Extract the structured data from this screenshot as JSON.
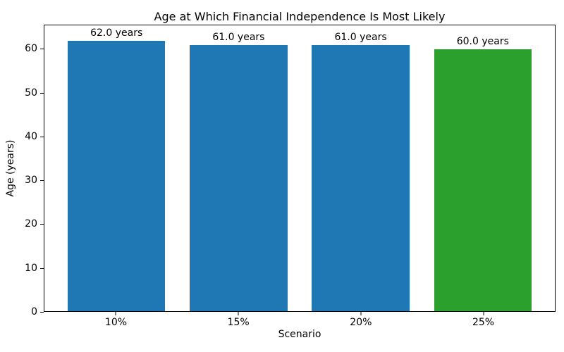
{
  "figure": {
    "background_color": "#ffffff",
    "text_color": "#000000"
  },
  "chart_data": {
    "type": "bar",
    "title": "Age at Which Financial Independence Is Most Likely",
    "xlabel": "Scenario",
    "ylabel": "Age (years)",
    "categories": [
      "10%",
      "15%",
      "20%",
      "25%"
    ],
    "values": [
      62.0,
      61.0,
      61.0,
      60.0
    ],
    "bar_labels": [
      "62.0 years",
      "61.0 years",
      "61.0 years",
      "60.0 years"
    ],
    "bar_colors": [
      "#1f77b4",
      "#1f77b4",
      "#1f77b4",
      "#2ca02c"
    ],
    "yticks": [
      0,
      10,
      20,
      30,
      40,
      50,
      60
    ],
    "ylim": [
      0,
      65.5
    ],
    "xlim": [
      -0.59,
      3.59
    ],
    "bar_width": 0.8,
    "grid": false,
    "legend": "none"
  }
}
